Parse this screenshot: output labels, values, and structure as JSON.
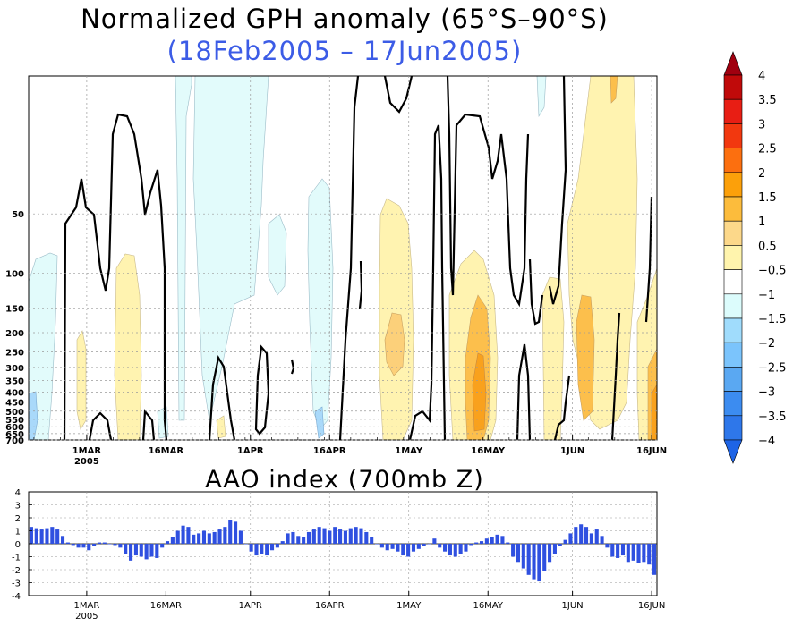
{
  "titles": {
    "main": "Normalized GPH anomaly (65°S–90°S)",
    "period": "(18Feb2005 – 17Jun2005)",
    "aao": "AAO index (700mb Z)"
  },
  "chart_data": [
    {
      "type": "heatmap",
      "title": "Normalized GPH anomaly (65°S–90°S)",
      "subtitle": "(18Feb2005 – 17Jun2005)",
      "xlabel": "",
      "ylabel": "",
      "x_range": [
        "18Feb2005",
        "17Jun2005"
      ],
      "x_ticks": [
        {
          "day": 11,
          "label": "1MAR",
          "sub": "2005"
        },
        {
          "day": 26,
          "label": "16MAR",
          "sub": ""
        },
        {
          "day": 42,
          "label": "1APR",
          "sub": ""
        },
        {
          "day": 57,
          "label": "16APR",
          "sub": ""
        },
        {
          "day": 72,
          "label": "1MAY",
          "sub": ""
        },
        {
          "day": 87,
          "label": "16MAY",
          "sub": ""
        },
        {
          "day": 103,
          "label": "1JUN",
          "sub": ""
        },
        {
          "day": 118,
          "label": "16JUN",
          "sub": ""
        }
      ],
      "y_ticks": [
        "50",
        "100",
        "150",
        "200",
        "250",
        "300",
        "350",
        "400",
        "450",
        "500",
        "550",
        "600",
        "650",
        "700"
      ],
      "y_tick_values": [
        50,
        100,
        150,
        200,
        250,
        300,
        350,
        400,
        450,
        500,
        550,
        600,
        650,
        700
      ],
      "ylim": [
        10,
        700
      ],
      "grid": true,
      "colorbar": {
        "labels": [
          "4",
          "3.5",
          "3",
          "2.5",
          "2",
          "1.5",
          "1",
          "0.5",
          "−0.5",
          "−1",
          "−1.5",
          "−2",
          "−2.5",
          "−3",
          "−3.5",
          "−4"
        ],
        "colors": [
          "#a0000f",
          "#c00a0a",
          "#e81e14",
          "#f2380f",
          "#fc6f0f",
          "#fca00a",
          "#fcbc3c",
          "#fcd88a",
          "#fff4ad",
          "#ffffff",
          "#dcfcfc",
          "#a0dcfc",
          "#7bc4fc",
          "#5aa8f2",
          "#3c8cf0",
          "#2e77ea",
          "#1e64e6"
        ]
      },
      "features": [
        {
          "kind": "positive",
          "level": 0.5,
          "start_day": 17,
          "end_day": 22,
          "top_hPa": 90,
          "note": "early-March positive column"
        },
        {
          "kind": "positive",
          "level": 1.0,
          "start_day": 68,
          "end_day": 75,
          "top_hPa": 40,
          "note": "early-May positive"
        },
        {
          "kind": "positive",
          "level": 1.5,
          "start_day": 82,
          "end_day": 92,
          "top_hPa": 110,
          "note": "mid-May maximum"
        },
        {
          "kind": "positive",
          "level": 1.0,
          "start_day": 98,
          "end_day": 118,
          "top_hPa": 10,
          "note": "late May–June positive"
        },
        {
          "kind": "negative",
          "level": -0.5,
          "start_day": 30,
          "end_day": 42,
          "top_hPa": 10,
          "note": "March–April weak negative"
        }
      ]
    },
    {
      "type": "bar",
      "title": "AAO index (700mb Z)",
      "ylim": [
        -4,
        4
      ],
      "y_ticks": [
        -4,
        -3,
        -2,
        -1,
        0,
        1,
        2,
        3,
        4
      ],
      "x_ticks": [
        "1MAR",
        "16MAR",
        "1APR",
        "16APR",
        "1MAY",
        "16MAY",
        "1JUN",
        "16JUN"
      ],
      "x_tick_sub": "2005",
      "bar_color": "#2f50e0",
      "values": [
        1.3,
        1.2,
        1.1,
        1.2,
        1.3,
        1.1,
        0.6,
        0.1,
        -0.1,
        -0.3,
        -0.3,
        -0.5,
        -0.2,
        0.1,
        0.1,
        0.0,
        -0.1,
        -0.3,
        -0.8,
        -1.3,
        -0.9,
        -1.0,
        -1.2,
        -1.0,
        -1.1,
        -0.3,
        0.2,
        0.5,
        1.0,
        1.4,
        1.3,
        0.7,
        0.8,
        1.0,
        0.8,
        0.9,
        1.1,
        1.3,
        1.8,
        1.7,
        1.0,
        0.0,
        -0.6,
        -0.9,
        -0.8,
        -0.9,
        -0.5,
        -0.3,
        0.2,
        0.8,
        0.9,
        0.6,
        0.5,
        0.9,
        1.1,
        1.3,
        1.2,
        1.0,
        1.3,
        1.1,
        1.0,
        1.2,
        1.3,
        1.2,
        0.9,
        0.5,
        0.0,
        -0.3,
        -0.5,
        -0.4,
        -0.6,
        -0.9,
        -1.0,
        -0.6,
        -0.4,
        -0.2,
        0.0,
        0.4,
        -0.3,
        -0.6,
        -0.9,
        -1.0,
        -0.8,
        -0.6,
        -0.1,
        0.1,
        0.2,
        0.4,
        0.5,
        0.7,
        0.6,
        0.1,
        -1.0,
        -1.4,
        -1.9,
        -2.4,
        -2.8,
        -2.9,
        -2.1,
        -1.4,
        -0.8,
        -0.2,
        0.3,
        0.8,
        1.3,
        1.5,
        1.3,
        0.8,
        1.1,
        0.6,
        -0.3,
        -1.0,
        -1.1,
        -0.9,
        -1.4,
        -1.3,
        -1.5,
        -1.4,
        -1.6,
        -2.4
      ]
    }
  ]
}
